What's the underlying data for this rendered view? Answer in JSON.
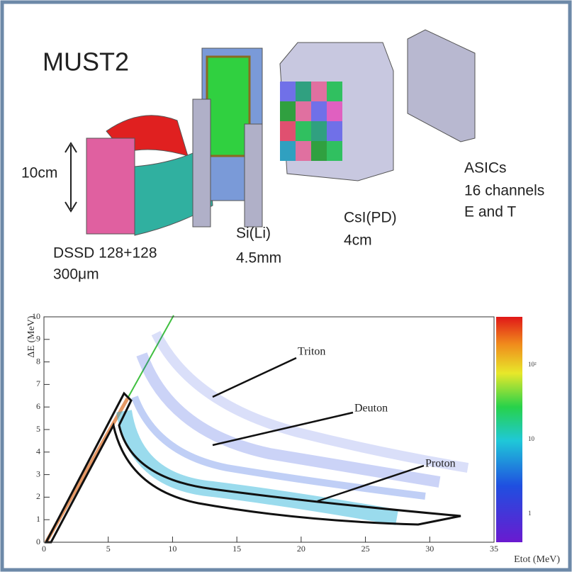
{
  "header": {
    "title": "MUST2"
  },
  "labels": {
    "height": "10cm",
    "dssd": "DSSD 128+128",
    "dssd_thickness": "300μm",
    "sili": "Si(Li)",
    "sili_thickness": "4.5mm",
    "csi": "CsI(PD)",
    "csi_thickness": "4cm",
    "asics": "ASICs",
    "asics_channels": "16 channels",
    "asics_signals": "E and T"
  },
  "chart_data": {
    "type": "scatter",
    "xlabel": "Etot (MeV)",
    "ylabel": "ΔE (MeV)",
    "xlim": [
      0,
      35
    ],
    "ylim": [
      0,
      10
    ],
    "xticks": [
      0,
      5,
      10,
      15,
      20,
      25,
      30,
      35
    ],
    "yticks": [
      0,
      1,
      2,
      3,
      4,
      5,
      6,
      7,
      8,
      9,
      10
    ],
    "colorbar_labels": [
      "10²",
      "10",
      "1"
    ],
    "annotations": [
      "Triton",
      "Deuton",
      "Proton"
    ]
  }
}
